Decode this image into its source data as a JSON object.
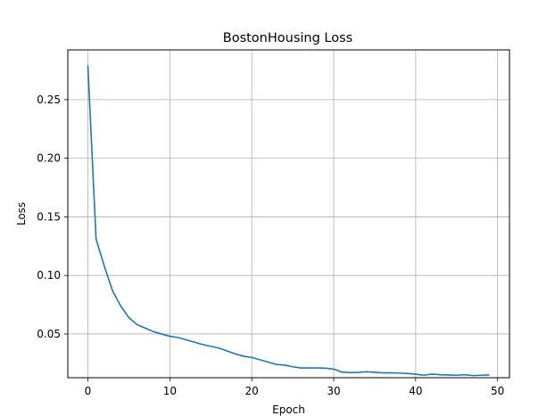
{
  "chart_data": {
    "type": "line",
    "title": "BostonHousing Loss",
    "xlabel": "Epoch",
    "ylabel": "Loss",
    "xlim": [
      -2.45,
      51.45
    ],
    "ylim": [
      0.0127,
      0.2925
    ],
    "xticks": [
      0,
      10,
      20,
      30,
      40,
      50
    ],
    "yticks": [
      0.05,
      0.1,
      0.15,
      0.2,
      0.25
    ],
    "xtick_labels": [
      "0",
      "10",
      "20",
      "30",
      "40",
      "50"
    ],
    "ytick_labels": [
      "0.05",
      "0.10",
      "0.15",
      "0.20",
      "0.25"
    ],
    "grid": true,
    "series": [
      {
        "color": "#1f77b4",
        "x": [
          0,
          1,
          2,
          3,
          4,
          5,
          6,
          7,
          8,
          9,
          10,
          11,
          12,
          13,
          14,
          15,
          16,
          17,
          18,
          19,
          20,
          21,
          22,
          23,
          24,
          25,
          26,
          27,
          28,
          29,
          30,
          31,
          32,
          33,
          34,
          35,
          36,
          37,
          38,
          39,
          40,
          41,
          42,
          43,
          44,
          45,
          46,
          47,
          48,
          49
        ],
        "y": [
          0.279,
          0.131,
          0.108,
          0.087,
          0.074,
          0.064,
          0.058,
          0.055,
          0.052,
          0.05,
          0.048,
          0.047,
          0.045,
          0.043,
          0.041,
          0.0395,
          0.038,
          0.0355,
          0.033,
          0.031,
          0.03,
          0.028,
          0.026,
          0.024,
          0.0235,
          0.022,
          0.021,
          0.021,
          0.021,
          0.0208,
          0.02,
          0.0175,
          0.017,
          0.0172,
          0.0178,
          0.0173,
          0.0168,
          0.0168,
          0.0167,
          0.0163,
          0.0157,
          0.0148,
          0.0158,
          0.0152,
          0.015,
          0.0148,
          0.0152,
          0.0145,
          0.0148,
          0.015
        ]
      }
    ]
  }
}
